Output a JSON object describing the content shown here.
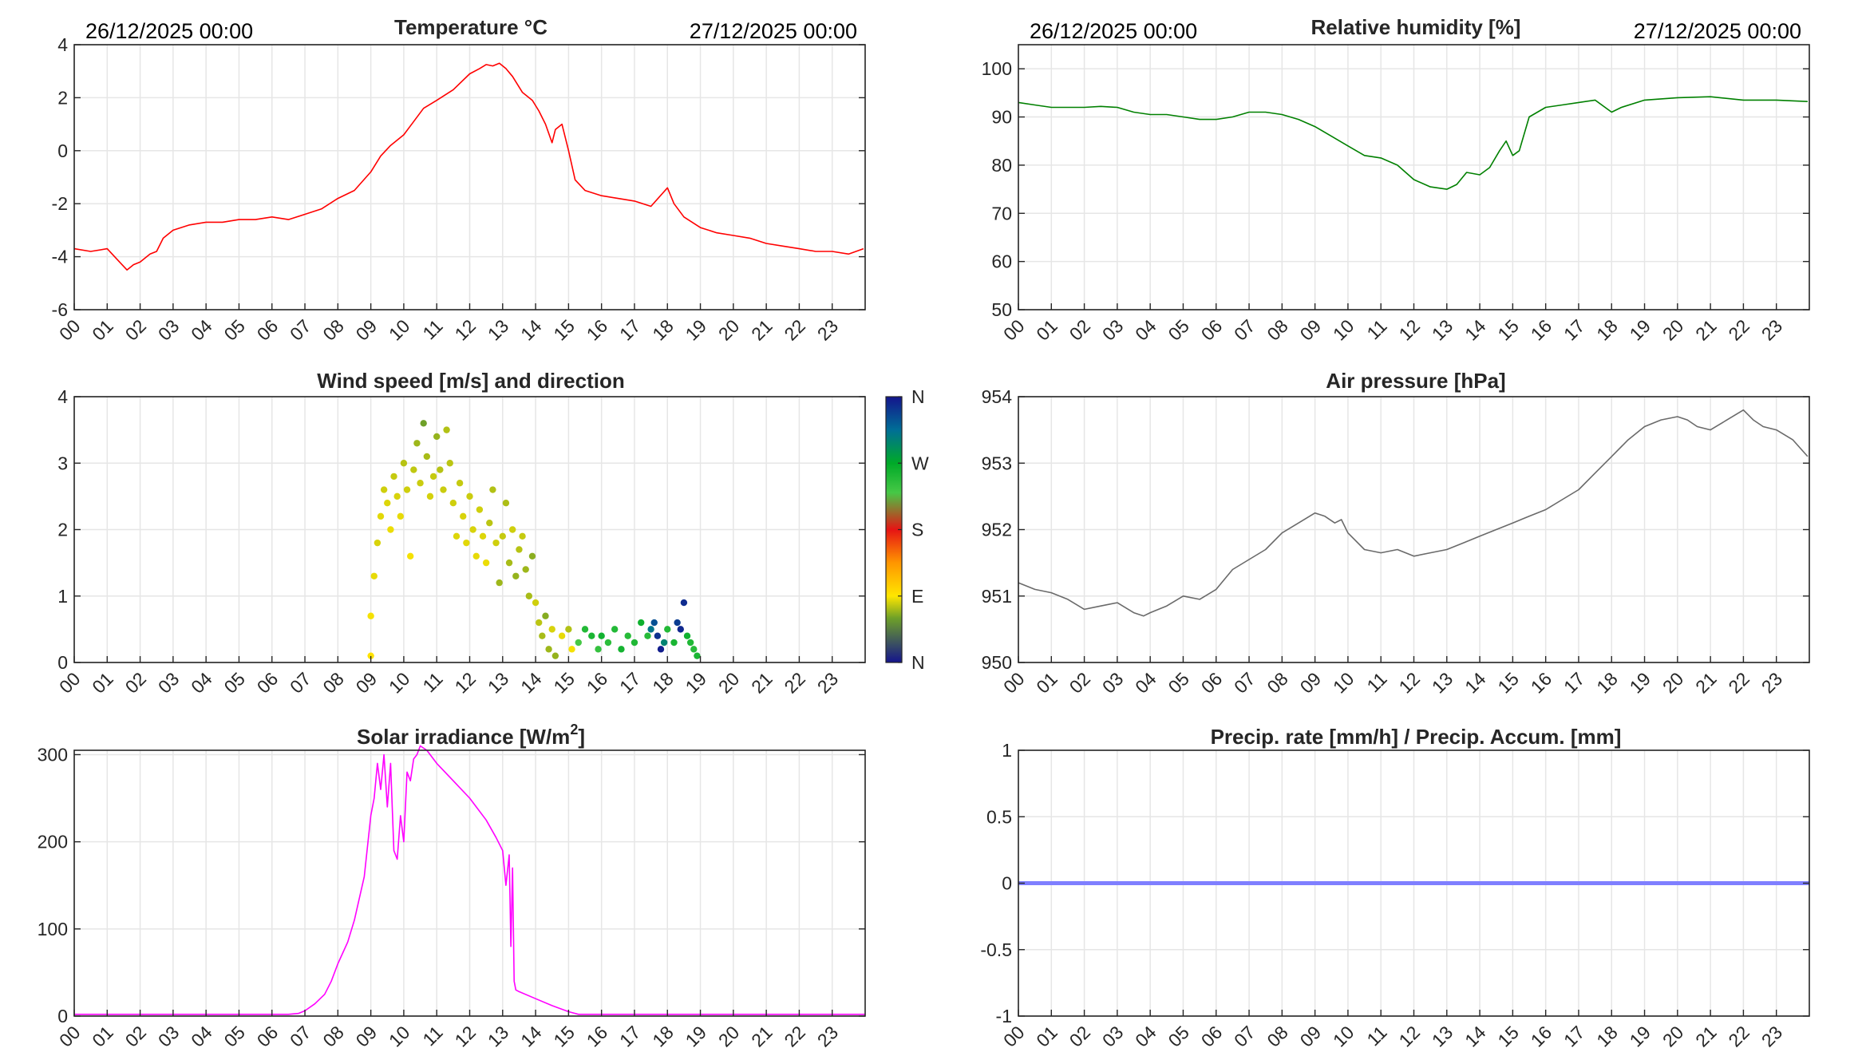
{
  "colors": {
    "temperature": "#ff0000",
    "humidity": "#008000",
    "pressure": "#6a6a6a",
    "solar": "#ff00ff",
    "precip": "#7f7fff"
  },
  "hour_labels": [
    "00",
    "01",
    "02",
    "03",
    "04",
    "05",
    "06",
    "07",
    "08",
    "09",
    "10",
    "11",
    "12",
    "13",
    "14",
    "15",
    "16",
    "17",
    "18",
    "19",
    "20",
    "21",
    "22",
    "23"
  ],
  "chart_data": [
    {
      "id": "temp",
      "type": "line",
      "title": "Temperature °C",
      "date_start": "26/12/2025 00:00",
      "date_end": "27/12/2025 00:00",
      "ylim": [
        -6,
        4
      ],
      "yticks": [
        -6,
        -4,
        -2,
        0,
        2,
        4
      ],
      "ytick_labels": [
        "-6",
        "-4",
        "-2",
        "0",
        "2",
        "4"
      ],
      "xlim": [
        0,
        24
      ],
      "color": "#ff0000",
      "x": [
        0,
        0.5,
        1.0,
        1.3,
        1.6,
        1.8,
        2.0,
        2.3,
        2.5,
        2.7,
        3.0,
        3.5,
        4.0,
        4.5,
        5.0,
        5.5,
        6.0,
        6.5,
        7.0,
        7.5,
        8.0,
        8.5,
        9.0,
        9.3,
        9.6,
        10.0,
        10.3,
        10.6,
        11.0,
        11.5,
        12.0,
        12.3,
        12.5,
        12.7,
        12.9,
        13.1,
        13.3,
        13.6,
        13.9,
        14.1,
        14.3,
        14.5,
        14.6,
        14.8,
        15.0,
        15.2,
        15.5,
        16.0,
        16.5,
        17.0,
        17.5,
        18.0,
        18.2,
        18.5,
        19.0,
        19.5,
        20.0,
        20.5,
        21.0,
        21.5,
        22.0,
        22.5,
        23.0,
        23.5,
        23.95
      ],
      "y": [
        -3.7,
        -3.8,
        -3.7,
        -4.1,
        -4.5,
        -4.3,
        -4.2,
        -3.9,
        -3.8,
        -3.3,
        -3.0,
        -2.8,
        -2.7,
        -2.7,
        -2.6,
        -2.6,
        -2.5,
        -2.6,
        -2.4,
        -2.2,
        -1.8,
        -1.5,
        -0.8,
        -0.2,
        0.2,
        0.6,
        1.1,
        1.6,
        1.9,
        2.3,
        2.9,
        3.1,
        3.25,
        3.2,
        3.3,
        3.1,
        2.8,
        2.2,
        1.9,
        1.5,
        1.0,
        0.3,
        0.8,
        1.0,
        0.0,
        -1.1,
        -1.5,
        -1.7,
        -1.8,
        -1.9,
        -2.1,
        -1.4,
        -2.0,
        -2.5,
        -2.9,
        -3.1,
        -3.2,
        -3.3,
        -3.5,
        -3.6,
        -3.7,
        -3.8,
        -3.8,
        -3.9,
        -3.7
      ]
    },
    {
      "id": "rh",
      "type": "line",
      "title": "Relative humidity [%]",
      "date_start": "26/12/2025 00:00",
      "date_end": "27/12/2025 00:00",
      "ylim": [
        50,
        105
      ],
      "yticks": [
        50,
        60,
        70,
        80,
        90,
        100
      ],
      "ytick_labels": [
        "50",
        "60",
        "70",
        "80",
        "90",
        "100"
      ],
      "xlim": [
        0,
        24
      ],
      "color": "#008000",
      "x": [
        0,
        0.5,
        1,
        1.5,
        2,
        2.5,
        3,
        3.5,
        4,
        4.5,
        5,
        5.5,
        6,
        6.5,
        7,
        7.5,
        8,
        8.5,
        9,
        9.5,
        10,
        10.5,
        11,
        11.5,
        12,
        12.5,
        13,
        13.3,
        13.6,
        14,
        14.3,
        14.6,
        14.8,
        15.0,
        15.2,
        15.5,
        16,
        16.5,
        17,
        17.5,
        18,
        18.3,
        19,
        20,
        21,
        22,
        23,
        23.95
      ],
      "y": [
        93,
        92.5,
        92,
        92,
        92,
        92.2,
        92,
        91,
        90.5,
        90.5,
        90,
        89.5,
        89.5,
        90,
        91,
        91,
        90.5,
        89.5,
        88,
        86,
        84,
        82,
        81.5,
        80,
        77,
        75.5,
        75,
        76,
        78.5,
        78,
        79.5,
        83,
        85,
        82,
        83,
        90,
        92,
        92.5,
        93,
        93.5,
        91,
        92,
        93.5,
        94,
        94.2,
        93.5,
        93.5,
        93.2
      ]
    },
    {
      "id": "wind",
      "type": "scatter",
      "title": "Wind speed [m/s] and direction",
      "ylim": [
        0,
        4
      ],
      "yticks": [
        0,
        1,
        2,
        3,
        4
      ],
      "ytick_labels": [
        "0",
        "1",
        "2",
        "3",
        "4"
      ],
      "xlim": [
        0,
        24
      ],
      "colorbar": {
        "labels": [
          "N",
          "E",
          "S",
          "W",
          "N"
        ],
        "range": [
          0,
          360
        ]
      },
      "points": [
        {
          "x": 9.0,
          "y": 0.7,
          "dir": 88
        },
        {
          "x": 9.0,
          "y": 0.1,
          "dir": 92
        },
        {
          "x": 9.1,
          "y": 1.3,
          "dir": 85
        },
        {
          "x": 9.2,
          "y": 1.8,
          "dir": 82
        },
        {
          "x": 9.3,
          "y": 2.2,
          "dir": 84
        },
        {
          "x": 9.4,
          "y": 2.6,
          "dir": 80
        },
        {
          "x": 9.5,
          "y": 2.4,
          "dir": 83
        },
        {
          "x": 9.6,
          "y": 2.0,
          "dir": 86
        },
        {
          "x": 9.7,
          "y": 2.8,
          "dir": 78
        },
        {
          "x": 9.8,
          "y": 2.5,
          "dir": 82
        },
        {
          "x": 9.9,
          "y": 2.2,
          "dir": 85
        },
        {
          "x": 10.0,
          "y": 3.0,
          "dir": 75
        },
        {
          "x": 10.1,
          "y": 2.6,
          "dir": 80
        },
        {
          "x": 10.2,
          "y": 1.6,
          "dir": 88
        },
        {
          "x": 10.3,
          "y": 2.9,
          "dir": 77
        },
        {
          "x": 10.4,
          "y": 3.3,
          "dir": 70
        },
        {
          "x": 10.5,
          "y": 2.7,
          "dir": 79
        },
        {
          "x": 10.6,
          "y": 3.6,
          "dir": 60
        },
        {
          "x": 10.7,
          "y": 3.1,
          "dir": 72
        },
        {
          "x": 10.8,
          "y": 2.5,
          "dir": 81
        },
        {
          "x": 10.9,
          "y": 2.8,
          "dir": 78
        },
        {
          "x": 11.0,
          "y": 3.4,
          "dir": 68
        },
        {
          "x": 11.1,
          "y": 2.9,
          "dir": 75
        },
        {
          "x": 11.2,
          "y": 2.6,
          "dir": 79
        },
        {
          "x": 11.3,
          "y": 3.5,
          "dir": 74
        },
        {
          "x": 11.4,
          "y": 3.0,
          "dir": 76
        },
        {
          "x": 11.5,
          "y": 2.4,
          "dir": 80
        },
        {
          "x": 11.6,
          "y": 1.9,
          "dir": 83
        },
        {
          "x": 11.7,
          "y": 2.7,
          "dir": 78
        },
        {
          "x": 11.8,
          "y": 2.2,
          "dir": 82
        },
        {
          "x": 11.9,
          "y": 1.8,
          "dir": 84
        },
        {
          "x": 12.0,
          "y": 2.5,
          "dir": 79
        },
        {
          "x": 12.1,
          "y": 2.0,
          "dir": 82
        },
        {
          "x": 12.2,
          "y": 1.6,
          "dir": 85
        },
        {
          "x": 12.3,
          "y": 2.3,
          "dir": 80
        },
        {
          "x": 12.4,
          "y": 1.9,
          "dir": 83
        },
        {
          "x": 12.5,
          "y": 1.5,
          "dir": 86
        },
        {
          "x": 12.6,
          "y": 2.1,
          "dir": 76
        },
        {
          "x": 12.7,
          "y": 2.6,
          "dir": 74
        },
        {
          "x": 12.8,
          "y": 1.8,
          "dir": 80
        },
        {
          "x": 12.9,
          "y": 1.2,
          "dir": 70
        },
        {
          "x": 13.0,
          "y": 1.9,
          "dir": 78
        },
        {
          "x": 13.1,
          "y": 2.4,
          "dir": 73
        },
        {
          "x": 13.2,
          "y": 1.5,
          "dir": 72
        },
        {
          "x": 13.3,
          "y": 2.0,
          "dir": 80
        },
        {
          "x": 13.4,
          "y": 1.3,
          "dir": 68
        },
        {
          "x": 13.5,
          "y": 1.7,
          "dir": 75
        },
        {
          "x": 13.6,
          "y": 1.9,
          "dir": 78
        },
        {
          "x": 13.7,
          "y": 1.4,
          "dir": 70
        },
        {
          "x": 13.8,
          "y": 1.0,
          "dir": 72
        },
        {
          "x": 13.9,
          "y": 1.6,
          "dir": 66
        },
        {
          "x": 14.0,
          "y": 0.9,
          "dir": 80
        },
        {
          "x": 14.1,
          "y": 0.6,
          "dir": 76
        },
        {
          "x": 14.2,
          "y": 0.4,
          "dir": 72
        },
        {
          "x": 14.3,
          "y": 0.7,
          "dir": 65
        },
        {
          "x": 14.4,
          "y": 0.2,
          "dir": 70
        },
        {
          "x": 14.5,
          "y": 0.5,
          "dir": 82
        },
        {
          "x": 14.6,
          "y": 0.1,
          "dir": 68
        },
        {
          "x": 14.8,
          "y": 0.4,
          "dir": 85
        },
        {
          "x": 15.0,
          "y": 0.5,
          "dir": 74
        },
        {
          "x": 15.1,
          "y": 0.2,
          "dir": 88
        },
        {
          "x": 15.3,
          "y": 0.3,
          "dir": 230
        },
        {
          "x": 15.5,
          "y": 0.5,
          "dir": 250
        },
        {
          "x": 15.7,
          "y": 0.4,
          "dir": 255
        },
        {
          "x": 15.9,
          "y": 0.2,
          "dir": 240
        },
        {
          "x": 16.0,
          "y": 0.4,
          "dir": 260
        },
        {
          "x": 16.2,
          "y": 0.3,
          "dir": 245
        },
        {
          "x": 16.4,
          "y": 0.5,
          "dir": 250
        },
        {
          "x": 16.6,
          "y": 0.2,
          "dir": 258
        },
        {
          "x": 16.8,
          "y": 0.4,
          "dir": 247
        },
        {
          "x": 17.0,
          "y": 0.3,
          "dir": 252
        },
        {
          "x": 17.2,
          "y": 0.6,
          "dir": 262
        },
        {
          "x": 17.4,
          "y": 0.4,
          "dir": 248
        },
        {
          "x": 17.5,
          "y": 0.5,
          "dir": 310
        },
        {
          "x": 17.6,
          "y": 0.6,
          "dir": 330
        },
        {
          "x": 17.7,
          "y": 0.4,
          "dir": 345
        },
        {
          "x": 17.8,
          "y": 0.2,
          "dir": 355
        },
        {
          "x": 17.9,
          "y": 0.3,
          "dir": 300
        },
        {
          "x": 18.0,
          "y": 0.5,
          "dir": 250
        },
        {
          "x": 18.2,
          "y": 0.3,
          "dir": 255
        },
        {
          "x": 18.3,
          "y": 0.6,
          "dir": 340
        },
        {
          "x": 18.4,
          "y": 0.5,
          "dir": 350
        },
        {
          "x": 18.5,
          "y": 0.9,
          "dir": 348
        },
        {
          "x": 18.6,
          "y": 0.4,
          "dir": 260
        },
        {
          "x": 18.7,
          "y": 0.3,
          "dir": 252
        },
        {
          "x": 18.8,
          "y": 0.2,
          "dir": 248
        },
        {
          "x": 18.9,
          "y": 0.1,
          "dir": 255
        }
      ]
    },
    {
      "id": "pressure",
      "type": "line",
      "title": "Air pressure [hPa]",
      "ylim": [
        950,
        954
      ],
      "yticks": [
        950,
        951,
        952,
        953,
        954
      ],
      "ytick_labels": [
        "950",
        "951",
        "952",
        "953",
        "954"
      ],
      "xlim": [
        0,
        24
      ],
      "color": "#6a6a6a",
      "x": [
        0,
        0.5,
        1,
        1.5,
        2,
        2.5,
        3,
        3.5,
        3.8,
        4,
        4.5,
        5,
        5.5,
        6,
        6.5,
        7,
        7.5,
        8,
        8.5,
        9,
        9.3,
        9.6,
        9.8,
        10,
        10.5,
        11,
        11.5,
        12,
        12.5,
        13,
        13.5,
        14,
        14.5,
        15,
        15.5,
        16,
        16.5,
        17,
        17.5,
        18,
        18.5,
        19,
        19.5,
        20,
        20.3,
        20.6,
        21,
        21.5,
        22,
        22.3,
        22.6,
        23,
        23.5,
        23.95
      ],
      "y": [
        951.2,
        951.1,
        951.05,
        950.95,
        950.8,
        950.85,
        950.9,
        950.75,
        950.7,
        950.75,
        950.85,
        951.0,
        950.95,
        951.1,
        951.4,
        951.55,
        951.7,
        951.95,
        952.1,
        952.25,
        952.2,
        952.1,
        952.15,
        951.95,
        951.7,
        951.65,
        951.7,
        951.6,
        951.65,
        951.7,
        951.8,
        951.9,
        952.0,
        952.1,
        952.2,
        952.3,
        952.45,
        952.6,
        952.85,
        953.1,
        953.35,
        953.55,
        953.65,
        953.7,
        953.65,
        953.55,
        953.5,
        953.65,
        953.8,
        953.65,
        953.55,
        953.5,
        953.35,
        953.1
      ]
    },
    {
      "id": "solar",
      "type": "line",
      "title": "Solar irradiance [W/m",
      "title_sup": "2",
      "title_suffix": "]",
      "ylim": [
        0,
        305
      ],
      "yticks": [
        0,
        100,
        200,
        300
      ],
      "ytick_labels": [
        "0",
        "100",
        "200",
        "300"
      ],
      "xlim": [
        0,
        24
      ],
      "color": "#ff00ff",
      "x": [
        0,
        3,
        6.5,
        6.8,
        7.0,
        7.3,
        7.6,
        7.8,
        8.0,
        8.3,
        8.5,
        8.8,
        9.0,
        9.1,
        9.2,
        9.3,
        9.4,
        9.5,
        9.6,
        9.7,
        9.8,
        9.9,
        10.0,
        10.1,
        10.2,
        10.3,
        10.4,
        10.5,
        10.7,
        11.0,
        11.5,
        12.0,
        12.5,
        12.8,
        13.0,
        13.1,
        13.2,
        13.25,
        13.3,
        13.35,
        13.4,
        13.5,
        14.0,
        14.5,
        15.0,
        15.3,
        16,
        20,
        24
      ],
      "y": [
        2,
        2,
        2,
        3,
        6,
        14,
        25,
        40,
        60,
        85,
        110,
        160,
        230,
        250,
        290,
        260,
        300,
        240,
        290,
        190,
        180,
        230,
        200,
        280,
        270,
        295,
        300,
        310,
        305,
        290,
        270,
        250,
        225,
        205,
        190,
        150,
        185,
        80,
        170,
        40,
        30,
        28,
        20,
        12,
        5,
        2,
        2,
        2,
        2
      ]
    },
    {
      "id": "precip",
      "type": "line",
      "title": "Precip. rate [mm/h] / Precip. Accum. [mm]",
      "ylim": [
        -1,
        1
      ],
      "yticks": [
        -1,
        -0.5,
        0,
        0.5,
        1
      ],
      "ytick_labels": [
        "-1",
        "-0.5",
        "0",
        "0.5",
        "1"
      ],
      "xlim": [
        0,
        24
      ],
      "color": "#7f7fff",
      "x": [
        0,
        24
      ],
      "y": [
        0,
        0
      ]
    }
  ]
}
